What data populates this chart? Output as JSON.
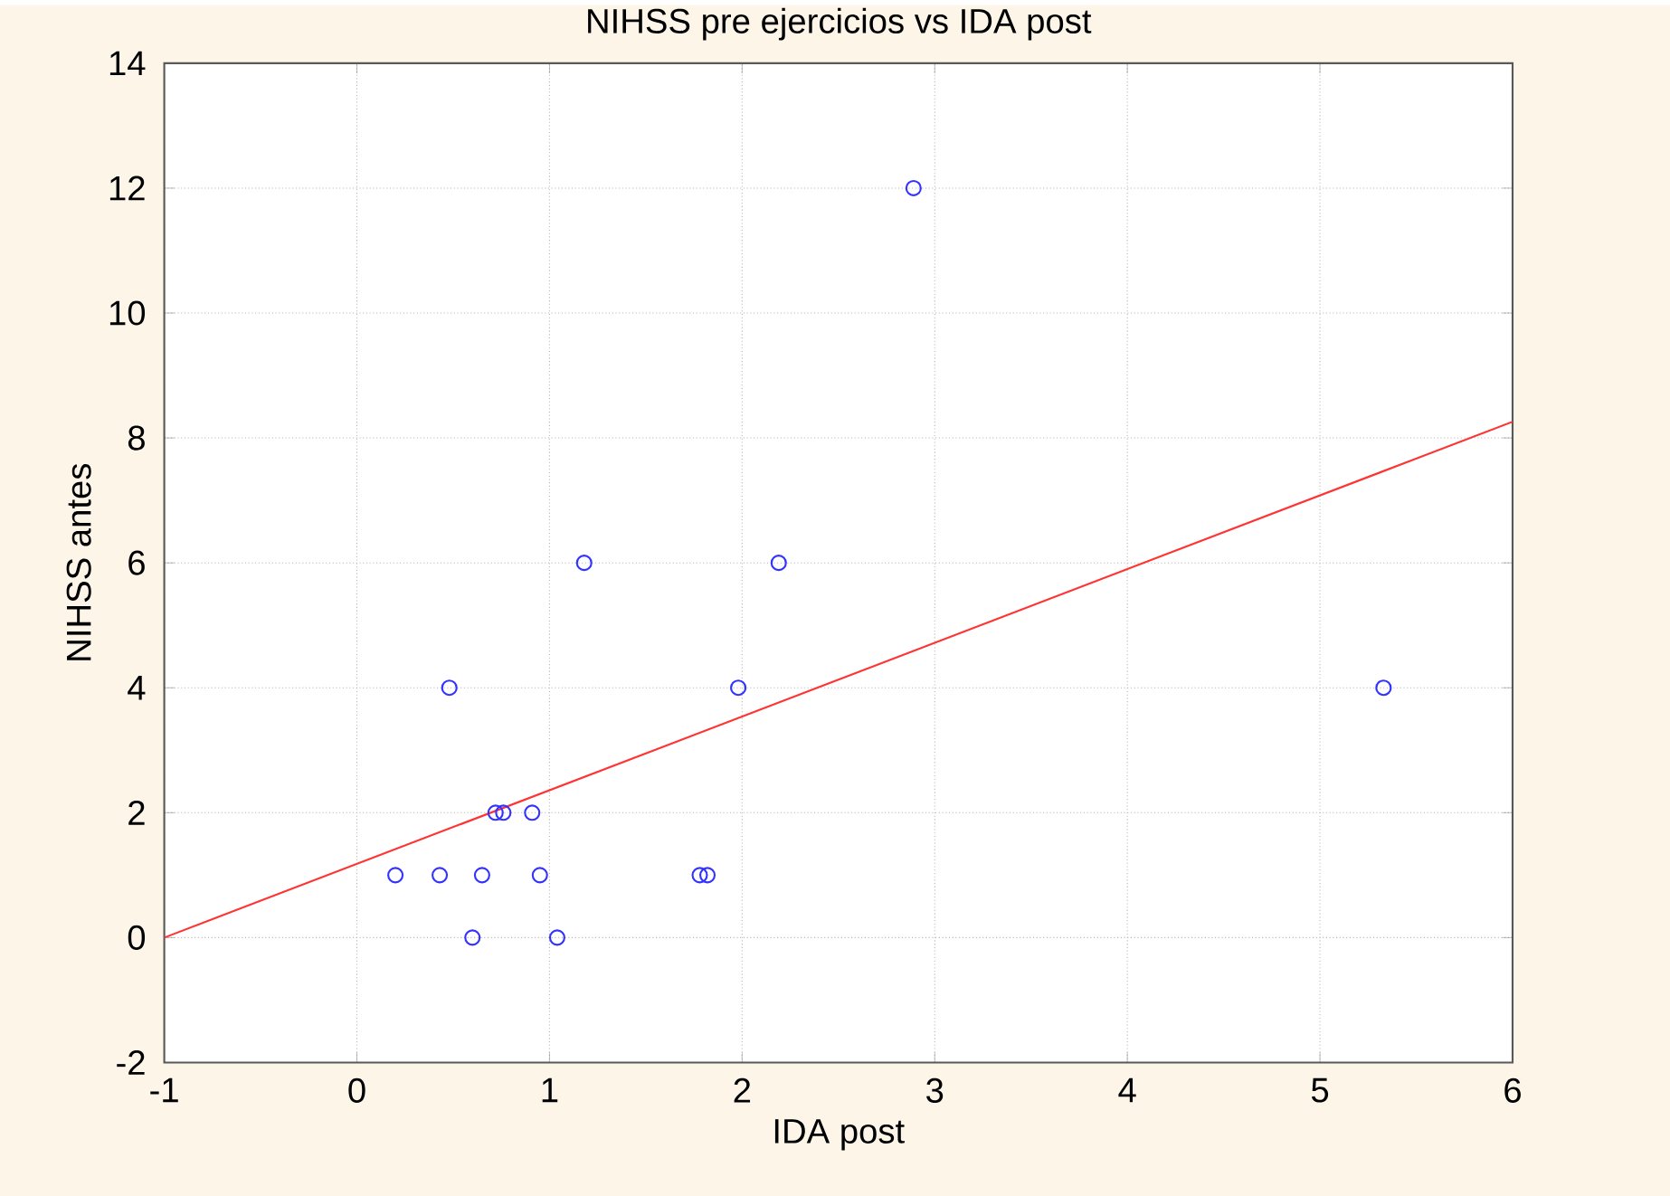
{
  "chart_data": {
    "type": "scatter",
    "title": "NIHSS pre ejercicios vs IDA post",
    "xlabel": "IDA post",
    "ylabel": "NIHSS antes",
    "xlim": [
      -1,
      6
    ],
    "ylim": [
      -2,
      14
    ],
    "xticks": [
      -1,
      0,
      1,
      2,
      3,
      4,
      5,
      6
    ],
    "yticks": [
      -2,
      0,
      2,
      4,
      6,
      8,
      10,
      12,
      14
    ],
    "grid": true,
    "series": [
      {
        "marker": "circle",
        "color": "#3333ff",
        "x": [
          0.2,
          0.43,
          0.65,
          0.95,
          0.6,
          1.04,
          0.48,
          0.72,
          0.76,
          0.91,
          1.18,
          1.78,
          1.82,
          1.98,
          2.19,
          2.89,
          5.33
        ],
        "values": [
          1,
          1,
          1,
          1,
          0,
          0,
          4,
          2,
          2,
          2,
          6,
          1,
          1,
          4,
          6,
          12,
          4
        ]
      },
      {
        "type": "line",
        "color": "#ff3333",
        "x": [
          -1,
          6
        ],
        "values": [
          0,
          8.26
        ]
      }
    ]
  }
}
